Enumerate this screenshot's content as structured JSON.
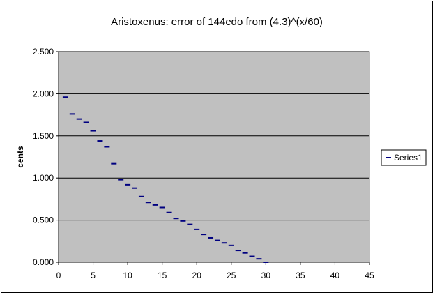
{
  "chart_data": {
    "type": "scatter",
    "title": "Aristoxenus: error of 144edo from (4.3)^(x/60)",
    "xlabel": "",
    "ylabel": "cents",
    "xlim": [
      0,
      45
    ],
    "ylim": [
      0,
      2.5
    ],
    "x_ticks": [
      "0",
      "5",
      "10",
      "15",
      "20",
      "25",
      "30",
      "35",
      "40",
      "45"
    ],
    "y_ticks": [
      "0.000",
      "0.500",
      "1.000",
      "1.500",
      "2.000",
      "2.500"
    ],
    "grid": "horizontal major gridlines",
    "plot_background": "#c0c0c0",
    "marker": "dash",
    "marker_color": "#000080",
    "legend_position": "right",
    "series": [
      {
        "name": "Series1",
        "x": [
          1,
          2,
          3,
          4,
          5,
          6,
          7,
          8,
          9,
          10,
          11,
          12,
          13,
          14,
          15,
          16,
          17,
          18,
          19,
          20,
          21,
          22,
          23,
          24,
          25,
          26,
          27,
          28,
          29,
          30
        ],
        "values": [
          1.96,
          1.76,
          1.7,
          1.66,
          1.56,
          1.44,
          1.37,
          1.17,
          0.98,
          0.92,
          0.88,
          0.78,
          0.71,
          0.68,
          0.65,
          0.59,
          0.52,
          0.49,
          0.45,
          0.39,
          0.33,
          0.29,
          0.26,
          0.23,
          0.2,
          0.14,
          0.11,
          0.07,
          0.04,
          0.0
        ]
      }
    ]
  }
}
